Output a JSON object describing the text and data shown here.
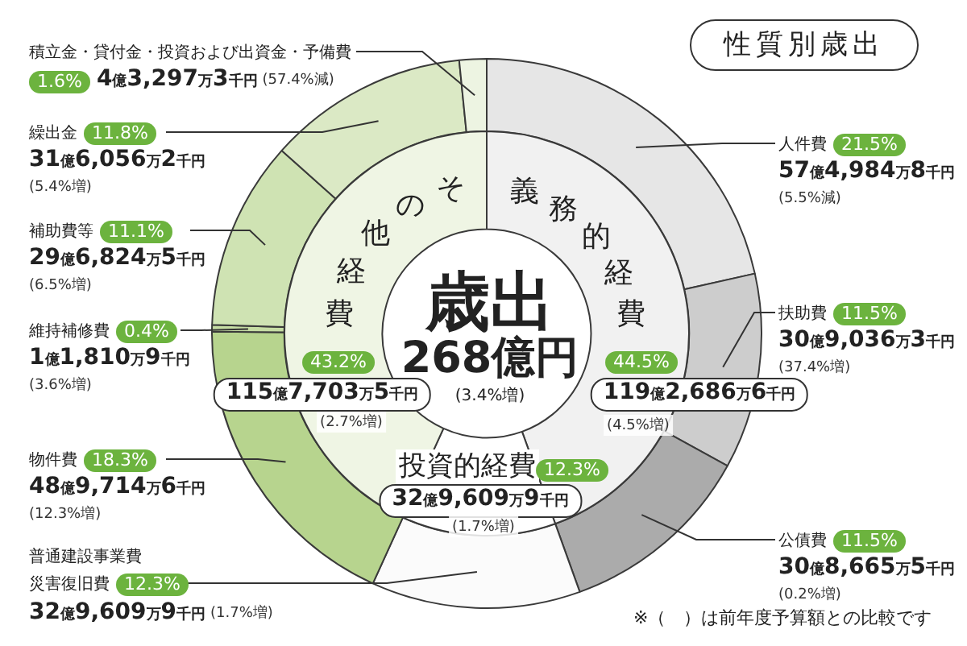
{
  "chart_data": [
    {
      "type": "donut",
      "title": "性質別歳出",
      "categories": [
        "人件費",
        "扶助費",
        "公債費",
        "普通建設事業費災害復旧費",
        "物件費",
        "維持補修費",
        "補助費等",
        "繰出金",
        "積立金・貸付金・投資および出資金・予備費"
      ],
      "values": [
        21.5,
        11.5,
        11.5,
        12.3,
        18.3,
        0.4,
        11.1,
        11.8,
        1.6
      ],
      "value_labels": [
        "21.5%",
        "11.5%",
        "11.5%",
        "12.3%",
        "18.3%",
        "0.4%",
        "11.1%",
        "11.8%",
        "1.6%"
      ],
      "colors": [
        "#e6e6e6",
        "#cdcdcd",
        "#ababab",
        "#fbfbfb",
        "#b7d48e",
        "#c6dda4",
        "#cfe3b3",
        "#dbe9c5",
        "#edf4e2"
      ],
      "annotations": [
        {
          "text": "57億4,984万8千円",
          "x": "人件費"
        },
        {
          "text": "(5.5%減)",
          "x": "人件費"
        },
        {
          "text": "30億9,036万3千円",
          "x": "扶助費"
        },
        {
          "text": "(37.4%増)",
          "x": "扶助費"
        },
        {
          "text": "30億8,665万5千円",
          "x": "公債費"
        },
        {
          "text": "(0.2%増)",
          "x": "公債費"
        },
        {
          "text": "32億9,609万9千円",
          "x": "普通建設事業費災害復旧費"
        },
        {
          "text": "(1.7%増)",
          "x": "普通建設事業費災害復旧費"
        },
        {
          "text": "48億9,714万6千円",
          "x": "物件費"
        },
        {
          "text": "(12.3%増)",
          "x": "物件費"
        },
        {
          "text": "1億1,810万9千円",
          "x": "維持補修費"
        },
        {
          "text": "(3.6%増)",
          "x": "維持補修費"
        },
        {
          "text": "29億6,824万5千円",
          "x": "補助費等"
        },
        {
          "text": "(6.5%増)",
          "x": "補助費等"
        },
        {
          "text": "31億6,056万2千円",
          "x": "繰出金"
        },
        {
          "text": "(5.4%増)",
          "x": "繰出金"
        },
        {
          "text": "4億3,297万3千円",
          "x": "積立金・貸付金・投資および出資金・予備費"
        },
        {
          "text": "(57.4%減)",
          "x": "積立金・貸付金・投資および出資金・予備費"
        },
        "※（　）は前年度予算額との比較です"
      ]
    },
    {
      "type": "donut",
      "categories": [
        "義務的経費",
        "投資的経費",
        "その他経費"
      ],
      "values": [
        44.5,
        12.3,
        43.2
      ],
      "value_labels": [
        "44.5%",
        "12.3%",
        "43.2%"
      ],
      "colors": [
        "#f1f1f1",
        "#ffffff",
        "#eff5e4"
      ],
      "annotations": [
        {
          "text": "119億2,686万6千円",
          "x": "義務的経費"
        },
        {
          "text": "(4.5%増)",
          "x": "義務的経費"
        },
        {
          "text": "32億9,609万9千円",
          "x": "投資的経費"
        },
        {
          "text": "(1.7%増)",
          "x": "投資的経費"
        },
        {
          "text": "115億7,703万5千円",
          "x": "その他経費"
        },
        {
          "text": "(2.7%増)",
          "x": "その他経費"
        },
        "歳出",
        "268億円",
        "(3.4%増)"
      ]
    }
  ]
}
